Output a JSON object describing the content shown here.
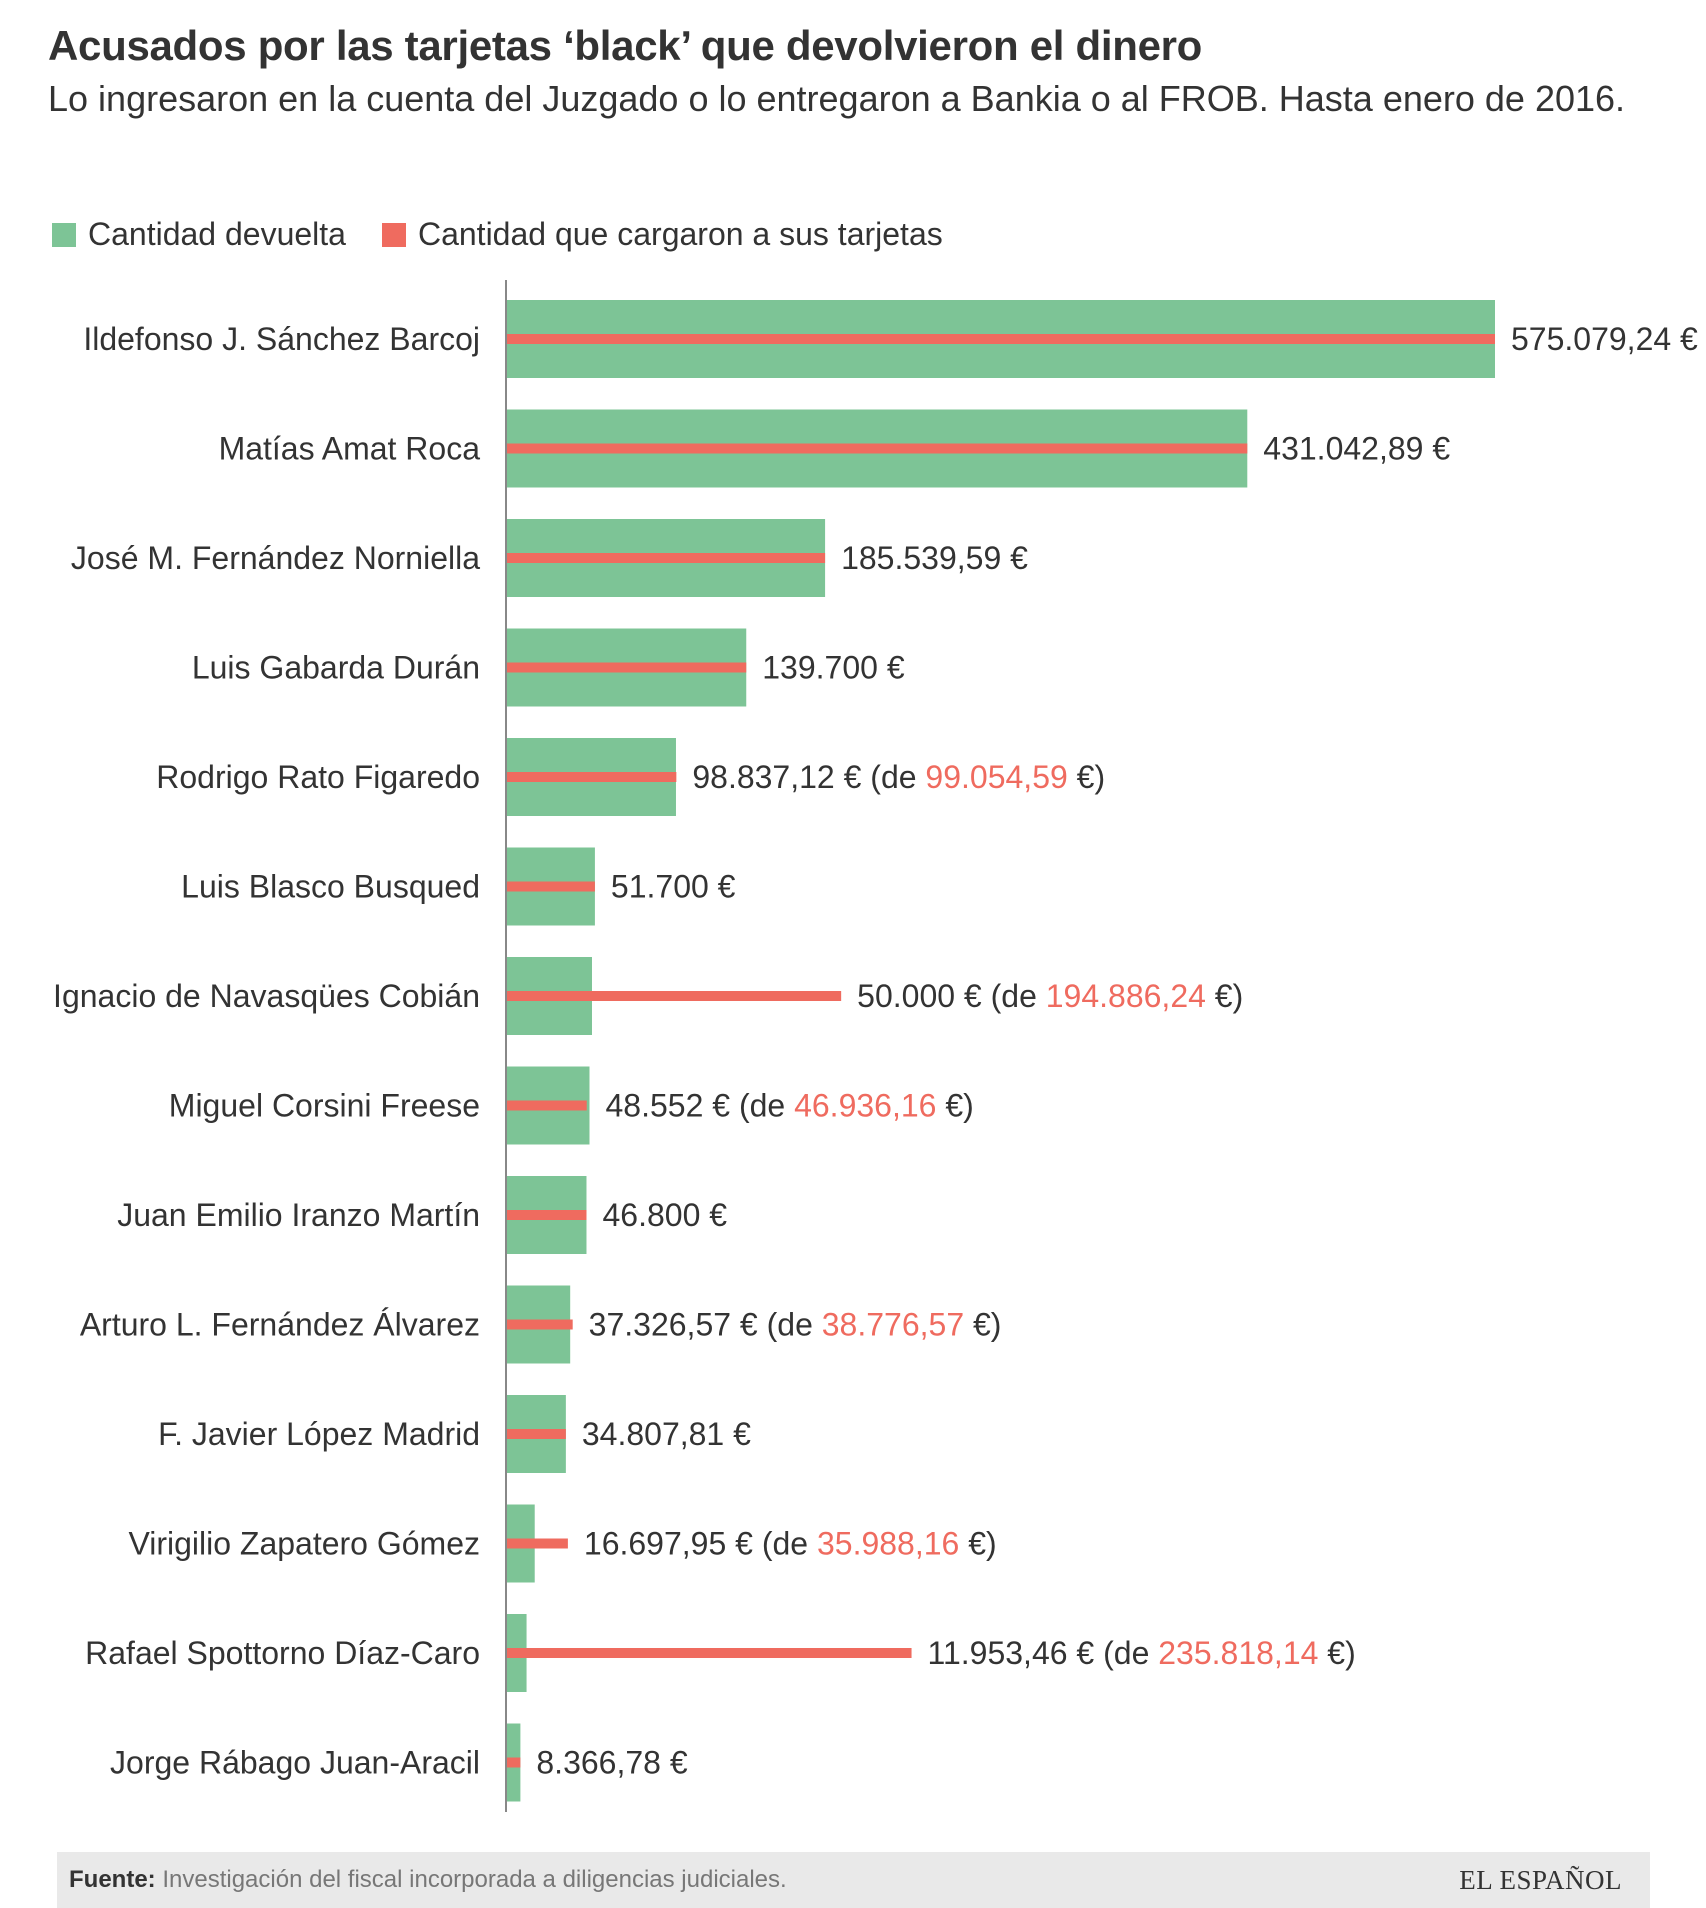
{
  "header": {
    "title": "Acusados por las tarjetas ‘black’ que devolvieron el dinero",
    "subtitle": "Lo ingresaron en la cuenta del Juzgado o lo entregaron a Bankia o al FROB. Hasta enero de 2016."
  },
  "legend": {
    "returned_label": "Cantidad devuelta",
    "charged_label": "Cantidad que cargaron a sus tarjetas"
  },
  "colors": {
    "returned": "#7dc496",
    "charged": "#ef6b5f",
    "axis": "#888888",
    "text": "#333333",
    "footer_bg": "#e9e9e9"
  },
  "chart_data": {
    "type": "bar",
    "orientation": "horizontal",
    "categories": [
      "Ildefonso J. Sánchez Barcoj",
      "Matías Amat Roca",
      "José M. Fernández Norniella",
      "Luis Gabarda Durán",
      "Rodrigo Rato Figaredo",
      "Luis Blasco Busqued",
      "Ignacio de Navasqües Cobián",
      "Miguel Corsini Freese",
      "Juan Emilio Iranzo Martín",
      "Arturo L. Fernández Álvarez",
      "F. Javier López Madrid",
      "Virigilio Zapatero Gómez",
      "Rafael Spottorno Díaz-Caro",
      "Jorge Rábago Juan-Aracil"
    ],
    "series": [
      {
        "name": "Cantidad devuelta",
        "values": [
          575079.24,
          431042.89,
          185539.59,
          139700,
          98837.12,
          51700,
          50000,
          48552,
          46800,
          37326.57,
          34807.81,
          16697.95,
          11953.46,
          8366.78
        ]
      },
      {
        "name": "Cantidad que cargaron a sus tarjetas",
        "values": [
          575079.24,
          431042.89,
          185539.59,
          139700,
          99054.59,
          51700,
          194886.24,
          46936.16,
          46800,
          38776.57,
          34807.81,
          35988.16,
          235818.14,
          8366.78
        ]
      }
    ],
    "value_labels": [
      {
        "main": "575.079,24 €",
        "charged": ""
      },
      {
        "main": "431.042,89 €",
        "charged": ""
      },
      {
        "main": "185.539,59 €",
        "charged": ""
      },
      {
        "main": "139.700 €",
        "charged": ""
      },
      {
        "main": "98.837,12 €",
        "charged": "99.054,59"
      },
      {
        "main": "51.700 €",
        "charged": ""
      },
      {
        "main": "50.000 €",
        "charged": "194.886,24"
      },
      {
        "main": "48.552 €",
        "charged": "46.936,16"
      },
      {
        "main": "46.800 €",
        "charged": ""
      },
      {
        "main": "37.326,57 €",
        "charged": "38.776,57"
      },
      {
        "main": "34.807,81 €",
        "charged": ""
      },
      {
        "main": "16.697,95 €",
        "charged": "35.988,16"
      },
      {
        "main": "11.953,46 €",
        "charged": "235.818,14"
      },
      {
        "main": "8.366,78 €",
        "charged": ""
      }
    ],
    "label_format": {
      "prefix": " (de ",
      "suffix": " €)"
    },
    "xlim": [
      0,
      575079.24
    ],
    "grid": false,
    "legend_position": "top-left"
  },
  "footer": {
    "source_label": "Fuente:",
    "source_text": " Investigación del fiscal incorporada a diligencias judiciales.",
    "logo": "EL ESPAÑOL"
  }
}
